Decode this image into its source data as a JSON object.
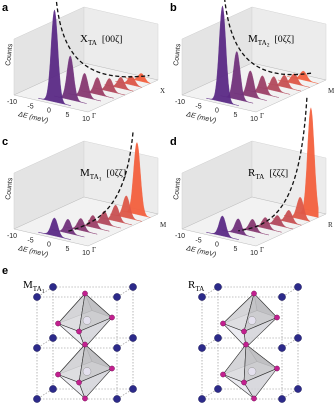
{
  "panels": [
    {
      "label": "a",
      "title": {
        "symbol": "X",
        "sub": "TA",
        "direction": "[00ζ]"
      },
      "y_label": "Counts",
      "x_label": "ΔE (meV)",
      "x_ticks": [
        "-10",
        "-5",
        "0",
        "5",
        "10"
      ],
      "start_point": "Γ",
      "end_point": "X"
    },
    {
      "label": "b",
      "title": {
        "symbol": "M",
        "sub": "TA",
        "subsub": "2",
        "direction": "[0ζζ]"
      },
      "y_label": "Counts",
      "x_label": "ΔE (meV)",
      "x_ticks": [
        "-10",
        "-5",
        "0",
        "5",
        "10"
      ],
      "start_point": "Γ",
      "end_point": "M"
    },
    {
      "label": "c",
      "title": {
        "symbol": "M",
        "sub": "TA",
        "subsub": "1",
        "direction": "[0ζζ]"
      },
      "y_label": "Counts",
      "x_label": "ΔE (meV)",
      "x_ticks": [
        "-10",
        "-5",
        "0",
        "5",
        "10"
      ],
      "start_point": "Γ",
      "end_point": "M"
    },
    {
      "label": "d",
      "title": {
        "symbol": "R",
        "sub": "TA",
        "direction": "[ζζζ]"
      },
      "y_label": "Counts",
      "x_label": "ΔE (meV)",
      "x_ticks": [
        "-10",
        "-5",
        "0",
        "5",
        "10"
      ],
      "start_point": "Γ",
      "end_point": "R"
    }
  ],
  "panel_e": {
    "label": "e",
    "structures": [
      {
        "symbol": "M",
        "sub": "TA",
        "subsub": "1"
      },
      {
        "symbol": "R",
        "sub": "TA"
      }
    ]
  }
}
